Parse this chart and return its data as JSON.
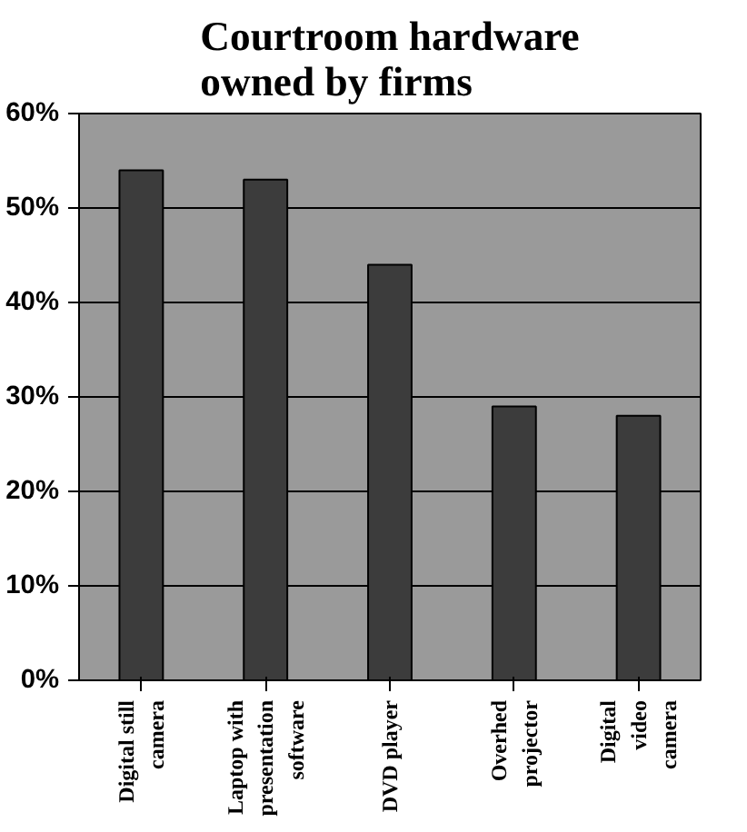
{
  "chart_data": {
    "type": "bar",
    "title": "Courtroom hardware\nowned by firms",
    "categories": [
      "Digital still\ncamera",
      "Laptop with\npresentation\nsoftware",
      "DVD player",
      "Overhed\nprojector",
      "Digital\nvideo\ncamera"
    ],
    "values": [
      54,
      53,
      44,
      29,
      28
    ],
    "color": "#3c3c3c",
    "ylim": [
      0,
      60
    ],
    "yticks": [
      {
        "value": 0,
        "label": "0%"
      },
      {
        "value": 10,
        "label": "10%"
      },
      {
        "value": 20,
        "label": "20%"
      },
      {
        "value": 30,
        "label": "30%"
      },
      {
        "value": 40,
        "label": "40%"
      },
      {
        "value": 50,
        "label": "50%"
      },
      {
        "value": 60,
        "label": "60%"
      }
    ],
    "grid": "y"
  }
}
